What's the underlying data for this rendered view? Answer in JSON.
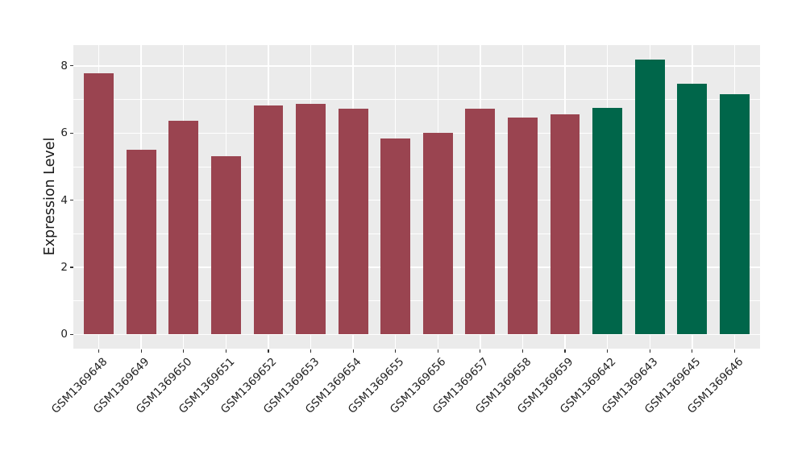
{
  "chart_data": {
    "type": "bar",
    "title": "",
    "xlabel": "",
    "ylabel": "Expression Level",
    "categories": [
      "GSM1369648",
      "GSM1369649",
      "GSM1369650",
      "GSM1369651",
      "GSM1369652",
      "GSM1369653",
      "GSM1369654",
      "GSM1369655",
      "GSM1369656",
      "GSM1369657",
      "GSM1369658",
      "GSM1369659",
      "GSM1369642",
      "GSM1369643",
      "GSM1369645",
      "GSM1369646"
    ],
    "values": [
      7.78,
      5.5,
      6.37,
      5.3,
      6.81,
      6.88,
      6.73,
      5.84,
      6.0,
      6.73,
      6.47,
      6.55,
      6.76,
      8.2,
      7.48,
      7.16
    ],
    "bar_colors": [
      "#9A4450",
      "#9A4450",
      "#9A4450",
      "#9A4450",
      "#9A4450",
      "#9A4450",
      "#9A4450",
      "#9A4450",
      "#9A4450",
      "#9A4450",
      "#9A4450",
      "#9A4450",
      "#00664A",
      "#00664A",
      "#00664A",
      "#00664A"
    ],
    "group_colors": {
      "red_group": "#9A4450",
      "green_group": "#00664A"
    },
    "yticks": [
      0,
      2,
      4,
      6,
      8
    ],
    "yminor": [
      1,
      3,
      5,
      7
    ],
    "ylim": [
      -0.41,
      8.62
    ],
    "grid": true,
    "legend": "none",
    "panel_background": "#EBEBEB",
    "grid_color": "#FFFFFF",
    "tick_color": "#333333",
    "axis_text_color": "#1F1F1F"
  }
}
